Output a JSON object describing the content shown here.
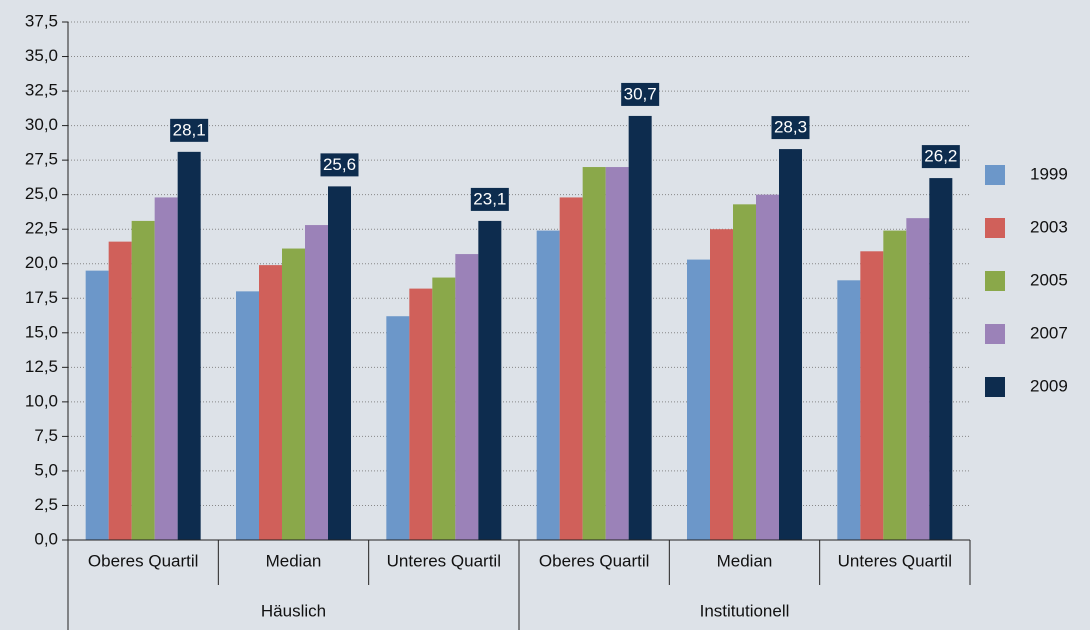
{
  "chart_data": {
    "type": "bar",
    "categories": [
      "Oberes Quartil",
      "Median",
      "Unteres Quartil",
      "Oberes Quartil",
      "Median",
      "Unteres Quartil"
    ],
    "groups": [
      "Häuslich",
      "Institutionell"
    ],
    "series": [
      {
        "name": "1999",
        "color": "#6c97c9",
        "values": [
          19.5,
          18.0,
          16.2,
          22.4,
          20.3,
          18.8
        ]
      },
      {
        "name": "2003",
        "color": "#d0605a",
        "values": [
          21.6,
          19.9,
          18.2,
          24.8,
          22.5,
          20.9
        ]
      },
      {
        "name": "2005",
        "color": "#8aa84a",
        "values": [
          23.1,
          21.1,
          19.0,
          27.0,
          24.3,
          22.4
        ]
      },
      {
        "name": "2007",
        "color": "#9b82b8",
        "values": [
          24.8,
          22.8,
          20.7,
          27.0,
          25.0,
          23.3
        ]
      },
      {
        "name": "2009",
        "color": "#0d2c4e",
        "values": [
          28.1,
          25.6,
          23.1,
          30.7,
          28.3,
          26.2
        ],
        "value_labels": [
          "28,1",
          "25,6",
          "23,1",
          "30,7",
          "28,3",
          "26,2"
        ]
      }
    ],
    "ylim": [
      0,
      37.5
    ],
    "yticks": [
      {
        "value": 0,
        "label": "0,0"
      },
      {
        "value": 2.5,
        "label": "2,5"
      },
      {
        "value": 5,
        "label": "5,0"
      },
      {
        "value": 7.5,
        "label": "7,5"
      },
      {
        "value": 10,
        "label": "10,0"
      },
      {
        "value": 12.5,
        "label": "12,5"
      },
      {
        "value": 15,
        "label": "15,0"
      },
      {
        "value": 17.5,
        "label": "17,5"
      },
      {
        "value": 20,
        "label": "20,0"
      },
      {
        "value": 22.5,
        "label": "22,5"
      },
      {
        "value": 25,
        "label": "25,0"
      },
      {
        "value": 27.5,
        "label": "27,5"
      },
      {
        "value": 30,
        "label": "30,0"
      },
      {
        "value": 32.5,
        "label": "32,5"
      },
      {
        "value": 35,
        "label": "35,0"
      },
      {
        "value": 37.5,
        "label": "37,5"
      }
    ],
    "grid": true,
    "legend": "right"
  }
}
